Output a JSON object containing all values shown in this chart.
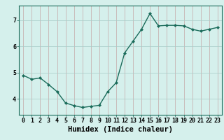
{
  "x": [
    0,
    1,
    2,
    3,
    4,
    5,
    6,
    7,
    8,
    9,
    10,
    11,
    12,
    13,
    14,
    15,
    16,
    17,
    18,
    19,
    20,
    21,
    22,
    23
  ],
  "y": [
    4.9,
    4.75,
    4.8,
    4.55,
    4.28,
    3.85,
    3.75,
    3.68,
    3.72,
    3.76,
    4.28,
    4.62,
    5.75,
    6.2,
    6.65,
    7.25,
    6.78,
    6.8,
    6.8,
    6.78,
    6.65,
    6.58,
    6.65,
    6.72
  ],
  "line_color": "#1a6b5a",
  "marker": "D",
  "marker_size": 2.0,
  "bg_color": "#d5f0ec",
  "vgrid_color": "#c4a8a8",
  "hgrid_color": "#a8ccc8",
  "xlabel": "Humidex (Indice chaleur)",
  "xlabel_fontsize": 7.5,
  "yticks": [
    4,
    5,
    6,
    7
  ],
  "xticks": [
    0,
    1,
    2,
    3,
    4,
    5,
    6,
    7,
    8,
    9,
    10,
    11,
    12,
    13,
    14,
    15,
    16,
    17,
    18,
    19,
    20,
    21,
    22,
    23
  ],
  "xlim": [
    -0.5,
    23.5
  ],
  "ylim": [
    3.4,
    7.55
  ],
  "tick_fontsize": 6.0,
  "linewidth": 1.0
}
